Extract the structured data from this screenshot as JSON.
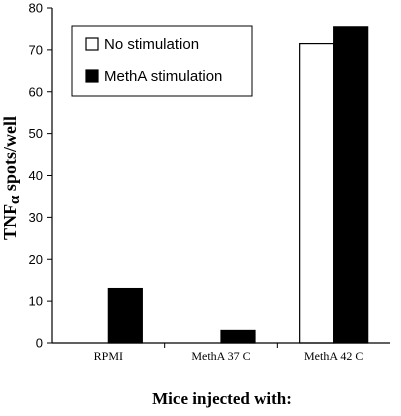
{
  "chart_data": {
    "type": "bar",
    "categories": [
      "RPMI",
      "MethA 37 C",
      "MethA 42 C"
    ],
    "series": [
      {
        "name": "No stimulation",
        "values": [
          0,
          0,
          71.5
        ],
        "fill": "#ffffff"
      },
      {
        "name": "MethA stimulation",
        "values": [
          13,
          3,
          75.5
        ],
        "fill": "#000000"
      }
    ],
    "ylabel_main": "TNF",
    "ylabel_symbol": "α",
    "ylabel_rest": " spots/well",
    "xlabel": "Mice injected with:",
    "ylim": [
      0,
      80
    ],
    "yticks": [
      0,
      10,
      20,
      30,
      40,
      50,
      60,
      70,
      80
    ],
    "legend_position": "top-left",
    "grid": false
  }
}
